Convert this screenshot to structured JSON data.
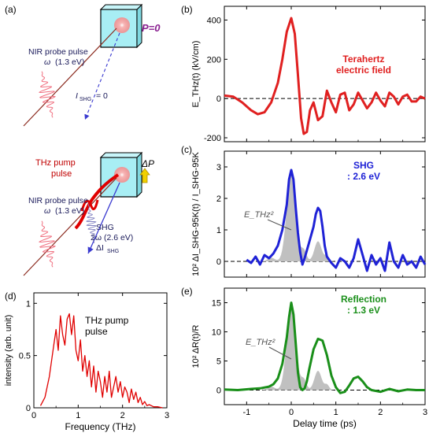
{
  "panels": {
    "a": "(a)",
    "b": "(b)",
    "c": "(c)",
    "d": "(d)",
    "e": "(e)"
  },
  "schematic": {
    "top": {
      "polarization": "P=0",
      "probe_label": "NIR probe pulse",
      "probe_freq": "ω",
      "probe_energy": "(1.3 eV)",
      "ishg": "I",
      "ishg_sub": "SHG",
      "ishg_value": "= 0"
    },
    "bottom": {
      "delta_p": "ΔP",
      "pump_line1": "THz pump",
      "pump_line2": "pulse",
      "probe_label": "NIR probe pulse",
      "probe_freq": "ω",
      "probe_energy": "(1.3 eV)",
      "shg_line1": "SHG",
      "shg_line2": "2ω (2.6 eV)",
      "shg_line3": "ΔI",
      "shg_line3_sub": "SHG"
    },
    "colors": {
      "crystal": "#a8eef4",
      "spot": "#f4a0a0",
      "probe": "#8b2a1e",
      "pump": "#e00000",
      "shg": "#3a3ad0",
      "arrow": "#f0d000",
      "purple": "#8a2090"
    }
  },
  "chart_data": [
    {
      "id": "b",
      "type": "line",
      "legend": [
        "Terahertz",
        "electric field"
      ],
      "ylabel": "E_THz(t) (kV/cm)",
      "ylabel_main": "E",
      "ylabel_sub": "THz",
      "ylabel_rest": "(t) (kV/cm)",
      "xlim": [
        -1.5,
        3
      ],
      "ylim": [
        -220,
        470
      ],
      "yticks": [
        "400",
        "200",
        "0",
        "-200"
      ],
      "ytick_values": [
        400,
        200,
        0,
        -200
      ],
      "color": "#e02020",
      "x": [
        -1.5,
        -1.3,
        -1.1,
        -0.9,
        -0.75,
        -0.6,
        -0.45,
        -0.3,
        -0.2,
        -0.1,
        0.0,
        0.08,
        0.15,
        0.22,
        0.28,
        0.35,
        0.42,
        0.5,
        0.6,
        0.7,
        0.8,
        0.9,
        1.0,
        1.1,
        1.2,
        1.3,
        1.4,
        1.5,
        1.6,
        1.7,
        1.8,
        1.9,
        2.0,
        2.1,
        2.2,
        2.3,
        2.4,
        2.5,
        2.6,
        2.7,
        2.8,
        2.9,
        3.0
      ],
      "y": [
        15,
        10,
        -20,
        -60,
        -80,
        -70,
        -20,
        80,
        200,
        340,
        410,
        330,
        120,
        -100,
        -180,
        -170,
        -60,
        -20,
        -110,
        -90,
        40,
        -20,
        -70,
        20,
        30,
        -60,
        -30,
        30,
        -10,
        -50,
        -20,
        30,
        -10,
        -40,
        30,
        10,
        -30,
        10,
        20,
        -15,
        -15,
        10,
        0
      ]
    },
    {
      "id": "c",
      "type": "line",
      "legend": [
        "SHG",
        ": 2.6 eV"
      ],
      "ylabel": "10² ΔI_SHG-95K(t) / I_SHG-95K",
      "annotation": "E_THz²",
      "xlim": [
        -1.5,
        3
      ],
      "ylim": [
        -0.5,
        3.5
      ],
      "yticks": [
        "3",
        "2",
        "1",
        "0"
      ],
      "ytick_values": [
        3,
        2,
        1,
        0
      ],
      "color": "#1f22d6",
      "x": [
        -1.0,
        -0.9,
        -0.8,
        -0.7,
        -0.6,
        -0.5,
        -0.4,
        -0.3,
        -0.2,
        -0.1,
        -0.05,
        0.0,
        0.05,
        0.1,
        0.15,
        0.2,
        0.25,
        0.3,
        0.4,
        0.5,
        0.55,
        0.6,
        0.65,
        0.7,
        0.75,
        0.8,
        0.9,
        1.0,
        1.1,
        1.2,
        1.3,
        1.4,
        1.5,
        1.6,
        1.7,
        1.8,
        1.9,
        2.0,
        2.1,
        2.2,
        2.3,
        2.4,
        2.5,
        2.6,
        2.7,
        2.8,
        2.9,
        3.0
      ],
      "y": [
        0.05,
        -0.05,
        0.15,
        -0.1,
        0.2,
        0.1,
        0.25,
        0.5,
        1.0,
        1.8,
        2.6,
        2.9,
        2.6,
        1.7,
        0.9,
        0.3,
        -0.1,
        0.1,
        0.6,
        1.1,
        1.5,
        1.7,
        1.6,
        1.1,
        0.5,
        0.15,
        -0.05,
        -0.2,
        0.1,
        0.0,
        -0.2,
        0.1,
        0.7,
        0.2,
        -0.3,
        0.2,
        -0.1,
        0.1,
        -0.3,
        0.6,
        0.0,
        -0.2,
        0.2,
        -0.1,
        0.0,
        -0.2,
        0.15,
        -0.1
      ]
    },
    {
      "id": "d",
      "type": "line",
      "legend": [
        "THz pump",
        "pulse"
      ],
      "ylabel": "intensity (arb. unit)",
      "xlabel": "Frequency (THz)",
      "xlim": [
        0,
        3
      ],
      "ylim": [
        0,
        1.1
      ],
      "xticks": [
        "0",
        "1",
        "2",
        "3"
      ],
      "xtick_values": [
        0,
        1,
        2,
        3
      ],
      "yticks": [
        "1",
        "0.5",
        "0"
      ],
      "ytick_values": [
        1,
        0.5,
        0
      ],
      "color": "#e00000",
      "x": [
        0.15,
        0.25,
        0.35,
        0.45,
        0.5,
        0.55,
        0.6,
        0.65,
        0.7,
        0.75,
        0.8,
        0.85,
        0.9,
        0.95,
        1.0,
        1.05,
        1.1,
        1.15,
        1.2,
        1.25,
        1.3,
        1.35,
        1.4,
        1.45,
        1.5,
        1.55,
        1.6,
        1.65,
        1.7,
        1.75,
        1.8,
        1.85,
        1.9,
        1.95,
        2.0,
        2.05,
        2.1,
        2.15,
        2.2,
        2.25,
        2.3,
        2.35,
        2.4,
        2.45,
        2.5,
        2.55,
        2.6,
        2.7,
        2.8,
        2.9
      ],
      "y": [
        0.02,
        0.1,
        0.3,
        0.6,
        0.75,
        0.55,
        0.88,
        0.7,
        0.6,
        0.85,
        0.9,
        0.7,
        0.88,
        0.55,
        0.45,
        0.65,
        0.35,
        0.5,
        0.3,
        0.45,
        0.2,
        0.4,
        0.15,
        0.35,
        0.25,
        0.1,
        0.3,
        0.15,
        0.35,
        0.1,
        0.2,
        0.3,
        0.15,
        0.25,
        0.1,
        0.2,
        0.15,
        0.05,
        0.18,
        0.08,
        0.15,
        0.05,
        0.1,
        0.03,
        0.06,
        0.02,
        0.03,
        0.01,
        0.01,
        0.0
      ]
    },
    {
      "id": "e",
      "type": "line",
      "legend": [
        "Reflection",
        ": 1.3 eV"
      ],
      "ylabel": "10² ΔR(t)/R",
      "xlabel": "Delay time (ps)",
      "annotation": "E_THz²",
      "xlim": [
        -1.5,
        3
      ],
      "ylim": [
        -2.5,
        17.5
      ],
      "xticks": [
        "-1",
        "0",
        "1",
        "2",
        "3"
      ],
      "xtick_values": [
        -1,
        0,
        1,
        2,
        3
      ],
      "yticks": [
        "15",
        "10",
        "5",
        "0"
      ],
      "ytick_values": [
        15,
        10,
        5,
        0
      ],
      "color": "#1a8f1a",
      "x": [
        -1.5,
        -1.2,
        -0.9,
        -0.7,
        -0.5,
        -0.4,
        -0.3,
        -0.2,
        -0.1,
        -0.05,
        0.0,
        0.05,
        0.1,
        0.15,
        0.2,
        0.25,
        0.3,
        0.35,
        0.4,
        0.5,
        0.6,
        0.7,
        0.8,
        0.9,
        1.0,
        1.1,
        1.2,
        1.3,
        1.4,
        1.5,
        1.6,
        1.7,
        1.8,
        2.0,
        2.2,
        2.4,
        2.6,
        2.8,
        3.0
      ],
      "y": [
        0.1,
        0.0,
        0.2,
        0.3,
        0.6,
        1.0,
        2.0,
        4.5,
        9.0,
        12.5,
        15.0,
        13.0,
        8.0,
        3.0,
        0.5,
        0.0,
        0.3,
        1.5,
        3.5,
        7.0,
        8.8,
        8.5,
        6.0,
        2.5,
        0.5,
        -0.5,
        -0.3,
        0.8,
        2.0,
        2.3,
        1.5,
        0.5,
        0.0,
        -0.3,
        0.2,
        -0.2,
        0.1,
        0.0,
        0.0
      ]
    }
  ]
}
